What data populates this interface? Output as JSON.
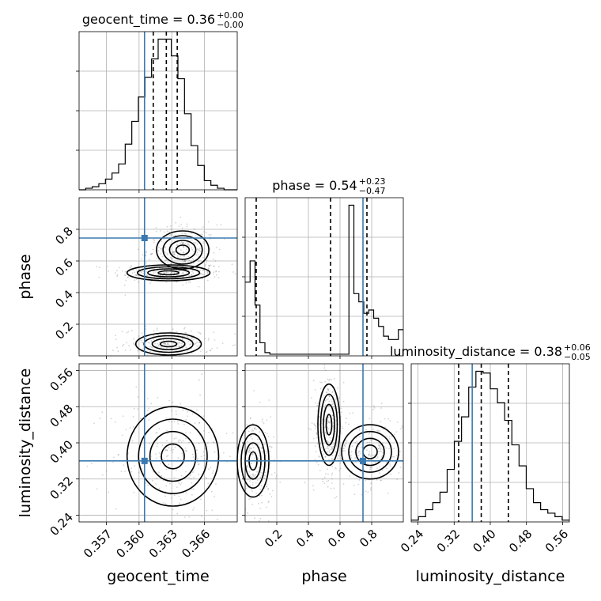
{
  "chart_data": {
    "type": "corner",
    "parameters": [
      "geocent_time",
      "phase",
      "luminosity_distance"
    ],
    "axes": {
      "geocent_time": {
        "range": [
          0.3545,
          0.369
        ],
        "ticks": [
          0.357,
          0.36,
          0.363,
          0.366
        ],
        "tick_labels": [
          "0.357",
          "0.360",
          "0.363",
          "0.366"
        ]
      },
      "phase": {
        "range": [
          0.0,
          1.0
        ],
        "ticks": [
          0.2,
          0.4,
          0.6,
          0.8
        ],
        "tick_labels": [
          "0.2",
          "0.4",
          "0.6",
          "0.8"
        ]
      },
      "luminosity_distance": {
        "range": [
          0.225,
          0.575
        ],
        "ticks": [
          0.24,
          0.32,
          0.4,
          0.48,
          0.56
        ],
        "tick_labels": [
          "0.24",
          "0.32",
          "0.40",
          "0.48",
          "0.56"
        ]
      }
    },
    "truths": {
      "geocent_time": 0.3605,
      "phase": 0.745,
      "luminosity_distance": 0.36
    },
    "titles": [
      {
        "param": "geocent_time",
        "text": "geocent_time = 0.36",
        "plus": "+0.00",
        "minus": "−0.00"
      },
      {
        "param": "phase",
        "text": "phase = 0.54",
        "plus": "+0.23",
        "minus": "−0.47"
      },
      {
        "param": "luminosity_distance",
        "text": "luminosity_distance = 0.38",
        "plus": "+0.06",
        "minus": "−0.05"
      }
    ],
    "quantiles": {
      "geocent_time": [
        0.3613,
        0.3625,
        0.3635
      ],
      "phase": [
        0.07,
        0.54,
        0.77
      ],
      "luminosity_distance": [
        0.33,
        0.38,
        0.44
      ]
    },
    "histograms": {
      "geocent_time": {
        "bin_edges_range": [
          0.3545,
          0.369
        ],
        "counts": [
          0,
          1,
          2,
          4,
          7,
          11,
          17,
          30,
          45,
          61,
          74,
          86,
          99,
          99,
          88,
          73,
          50,
          29,
          16,
          6,
          3,
          1,
          0,
          0
        ]
      },
      "phase": {
        "bin_edges_range": [
          0.0,
          1.0
        ],
        "counts": [
          45,
          58,
          31,
          8,
          2,
          1,
          1,
          1,
          1,
          1,
          1,
          1,
          1,
          1,
          1,
          1,
          1,
          1,
          1,
          1,
          1,
          92,
          38,
          33,
          26,
          28,
          23,
          18,
          12,
          10,
          10,
          16
        ]
      },
      "luminosity_distance": {
        "bin_edges_range": [
          0.225,
          0.575
        ],
        "counts": [
          1,
          3,
          7,
          11,
          17,
          30,
          46,
          60,
          77,
          86,
          85,
          76,
          68,
          58,
          44,
          32,
          19,
          11,
          7,
          5,
          3,
          1
        ]
      }
    },
    "contours_2d": [
      {
        "x": "geocent_time",
        "y": "phase",
        "blobs": [
          {
            "center": [
              0.3627,
              0.525
            ],
            "spread": [
              0.0019,
              0.025
            ]
          },
          {
            "center": [
              0.364,
              0.67
            ],
            "spread": [
              0.0012,
              0.06
            ]
          },
          {
            "center": [
              0.3627,
              0.075
            ],
            "spread": [
              0.0015,
              0.035
            ]
          }
        ]
      },
      {
        "x": "geocent_time",
        "y": "luminosity_distance",
        "blobs": [
          {
            "center": [
              0.3631,
              0.37
            ],
            "spread": [
              0.0021,
              0.055
            ]
          }
        ]
      },
      {
        "x": "phase",
        "y": "luminosity_distance",
        "blobs": [
          {
            "center": [
              0.53,
              0.44
            ],
            "spread": [
              0.035,
              0.045
            ]
          },
          {
            "center": [
              0.79,
              0.38
            ],
            "spread": [
              0.09,
              0.03
            ]
          },
          {
            "center": [
              0.05,
              0.36
            ],
            "spread": [
              0.05,
              0.04
            ]
          }
        ]
      }
    ]
  }
}
